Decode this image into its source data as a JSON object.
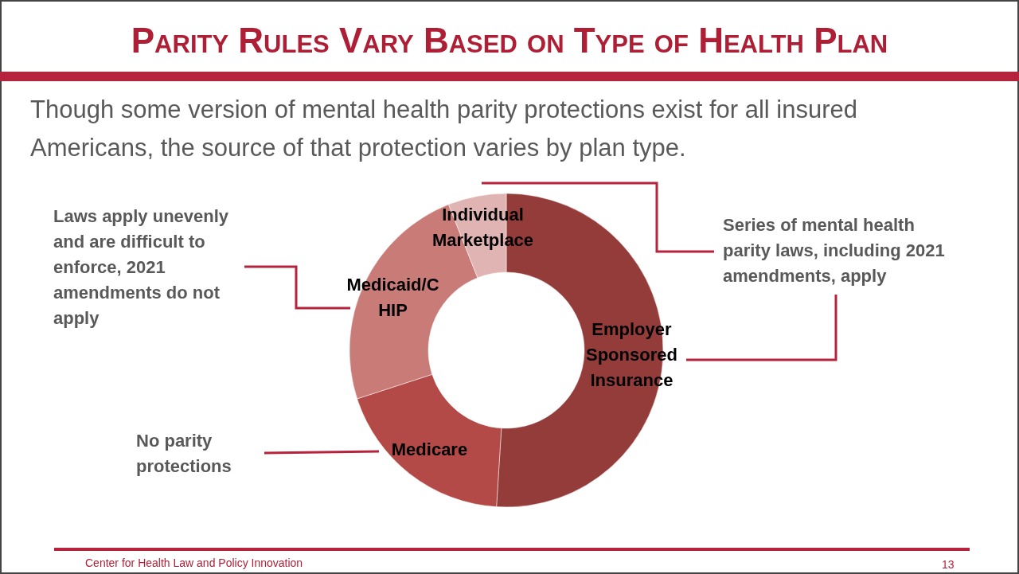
{
  "chart_data": {
    "type": "donut",
    "title": "Parity Rules Vary Based on Type of Health Plan",
    "subtitle": "Though some version of mental health parity protections exist for all insured Americans,  the source of that protection varies by plan type.",
    "categories": [
      "Employer Sponsored Insurance",
      "Medicare",
      "Medicaid/CHIP",
      "Individual Marketplace"
    ],
    "values": [
      51,
      19,
      24,
      6
    ],
    "colors": [
      "#943c3a",
      "#b34a47",
      "#c97b78",
      "#e0b4b2"
    ],
    "annotations": [
      "Series of mental health parity laws, including 2021 amendments, apply",
      "Laws apply unevenly and are difficult to enforce, 2021 amendments do not apply",
      "No parity protections",
      "Center for Health Law and Policy Innovation",
      "13"
    ]
  }
}
